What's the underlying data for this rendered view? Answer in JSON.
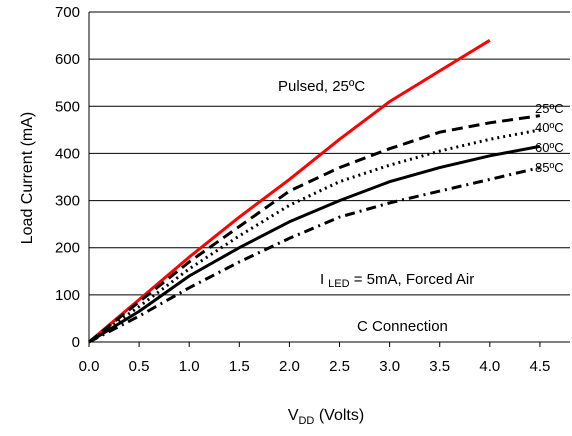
{
  "chart_data": {
    "type": "line",
    "title": "",
    "xlabel_main": "V",
    "xlabel_sub": "DD",
    "xlabel_rest": " (Volts)",
    "ylabel": "Load Current (mA)",
    "xlim": [
      0,
      4.8
    ],
    "ylim": [
      0,
      700
    ],
    "x_ticks": [
      "0.0",
      "0.5",
      "1.0",
      "1.5",
      "2.0",
      "2.5",
      "3.0",
      "3.5",
      "4.0",
      "4.5"
    ],
    "y_ticks": [
      "0",
      "100",
      "200",
      "300",
      "400",
      "500",
      "600",
      "700"
    ],
    "grid": "horizontal",
    "series": [
      {
        "name": "Pulsed, 25ºC",
        "color": "#ff0000",
        "style": "solid",
        "x": [
          0.0,
          0.5,
          1.0,
          1.5,
          2.0,
          2.5,
          3.0,
          3.5,
          4.0
        ],
        "y": [
          0,
          90,
          180,
          265,
          345,
          430,
          510,
          575,
          640
        ]
      },
      {
        "name": "25ºC",
        "color": "#000000",
        "style": "dash",
        "x": [
          0.0,
          0.5,
          1.0,
          1.5,
          2.0,
          2.5,
          3.0,
          3.5,
          4.0,
          4.5
        ],
        "y": [
          0,
          85,
          170,
          245,
          320,
          370,
          410,
          445,
          465,
          480
        ]
      },
      {
        "name": "40ºC",
        "color": "#000000",
        "style": "dot",
        "x": [
          0.0,
          0.5,
          1.0,
          1.5,
          2.0,
          2.5,
          3.0,
          3.5,
          4.0,
          4.5
        ],
        "y": [
          0,
          75,
          155,
          225,
          290,
          340,
          375,
          405,
          430,
          450
        ]
      },
      {
        "name": "60ºC",
        "color": "#000000",
        "style": "solid",
        "x": [
          0.0,
          0.5,
          1.0,
          1.5,
          2.0,
          2.5,
          3.0,
          3.5,
          4.0,
          4.5
        ],
        "y": [
          0,
          65,
          140,
          200,
          255,
          300,
          340,
          370,
          395,
          415
        ]
      },
      {
        "name": "85ºC",
        "color": "#000000",
        "style": "dashdot",
        "x": [
          0.0,
          0.5,
          1.0,
          1.5,
          2.0,
          2.5,
          3.0,
          3.5,
          4.0,
          4.5
        ],
        "y": [
          0,
          55,
          115,
          170,
          220,
          265,
          295,
          320,
          345,
          370
        ]
      }
    ],
    "annotations": {
      "pulsed_label": "Pulsed, 25ºC",
      "label_25": "25ºC",
      "label_40": "40ºC",
      "label_60": "60ºC",
      "label_85": "85ºC",
      "iled_main": "I",
      "iled_sub": "LED",
      "iled_rest": " = 5mA, Forced Air",
      "connection": "C Connection"
    }
  }
}
